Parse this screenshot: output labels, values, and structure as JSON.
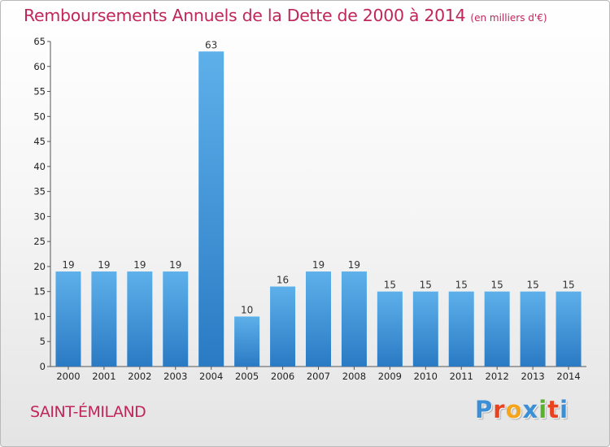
{
  "header": {
    "title": "Remboursements Annuels de la Dette de 2000 à 2014",
    "subtitle": "(en milliers d'€)"
  },
  "footer": {
    "commune": "SAINT-ÉMILAND",
    "brand": [
      "P",
      "r",
      "o",
      "x",
      "i",
      "t",
      "i"
    ]
  },
  "colors": {
    "title": "#c0265a",
    "bar_top": "#5eb0ea",
    "bar_bottom": "#2a7ac4",
    "brand": [
      "#3a8fd6",
      "#e8421e",
      "#f4a51b",
      "#3a8fd6",
      "#58b22a",
      "#e8421e",
      "#3a8fd6"
    ]
  },
  "chart_data": {
    "type": "bar",
    "title": "Remboursements Annuels de la Dette de 2000 à 2014",
    "categories": [
      "2000",
      "2001",
      "2002",
      "2003",
      "2004",
      "2005",
      "2006",
      "2007",
      "2008",
      "2009",
      "2010",
      "2011",
      "2012",
      "2013",
      "2014"
    ],
    "values": [
      19,
      19,
      19,
      19,
      63,
      10,
      16,
      19,
      19,
      15,
      15,
      15,
      15,
      15,
      15
    ],
    "ylim": [
      0,
      65
    ],
    "yticks": [
      0,
      5,
      10,
      15,
      20,
      25,
      30,
      35,
      40,
      45,
      50,
      55,
      60,
      65
    ],
    "grid": false,
    "legend": "none"
  }
}
